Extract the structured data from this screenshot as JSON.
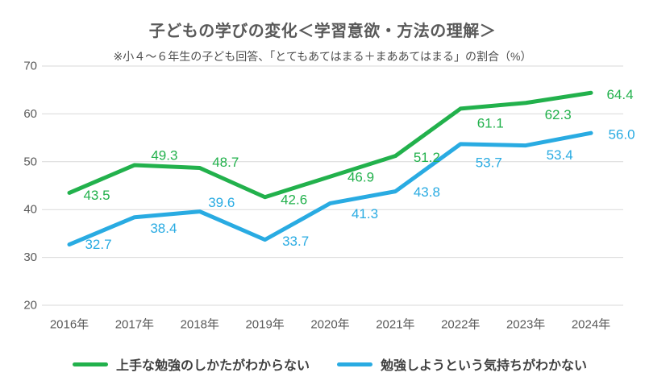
{
  "header": {
    "title": "子どもの学びの変化＜学習意欲・方法の理解＞",
    "subtitle": "※小４～６年生の子ども回答、「とてもあてはまる＋まああてはまる」の割合（%）"
  },
  "chart_data": {
    "type": "line",
    "title": "子どもの学びの変化＜学習意欲・方法の理解＞",
    "subtitle": "※小４～６年生の子ども回答、「とてもあてはまる＋まああてはまる」の割合（%）",
    "categories": [
      "2016年",
      "2017年",
      "2018年",
      "2019年",
      "2020年",
      "2021年",
      "2022年",
      "2023年",
      "2024年"
    ],
    "series": [
      {
        "name": "上手な勉強のしかたがわからない",
        "color": "#22b14c",
        "values": [
          43.5,
          49.3,
          48.7,
          42.6,
          46.9,
          51.2,
          61.1,
          62.3,
          64.4
        ],
        "label_offsets": [
          [
            34,
            3
          ],
          [
            37,
            -12
          ],
          [
            32,
            -7
          ],
          [
            36,
            3
          ],
          [
            38,
            1
          ],
          [
            39,
            2
          ],
          [
            37,
            18
          ],
          [
            40,
            15
          ],
          [
            36,
            2
          ]
        ]
      },
      {
        "name": "勉強しようという気持ちがわかない",
        "color": "#29abe2",
        "values": [
          32.7,
          38.4,
          39.6,
          33.7,
          41.3,
          43.8,
          53.7,
          53.4,
          56.0
        ],
        "label_offsets": [
          [
            36,
            0
          ],
          [
            36,
            14
          ],
          [
            27,
            -11
          ],
          [
            38,
            2
          ],
          [
            43,
            13
          ],
          [
            39,
            1
          ],
          [
            35,
            23
          ],
          [
            42,
            12
          ],
          [
            38,
            2
          ]
        ]
      }
    ],
    "y_ticks": [
      70,
      60,
      50,
      40,
      30,
      20
    ],
    "ylim": [
      20,
      70
    ],
    "grid": true,
    "legend_position": "bottom",
    "label_decimals": 1
  },
  "style": {
    "grid_color": "#d9d9d9",
    "tick_color": "#595959",
    "data_label_size": 17,
    "tick_label_size": 15,
    "line_width": 5
  }
}
